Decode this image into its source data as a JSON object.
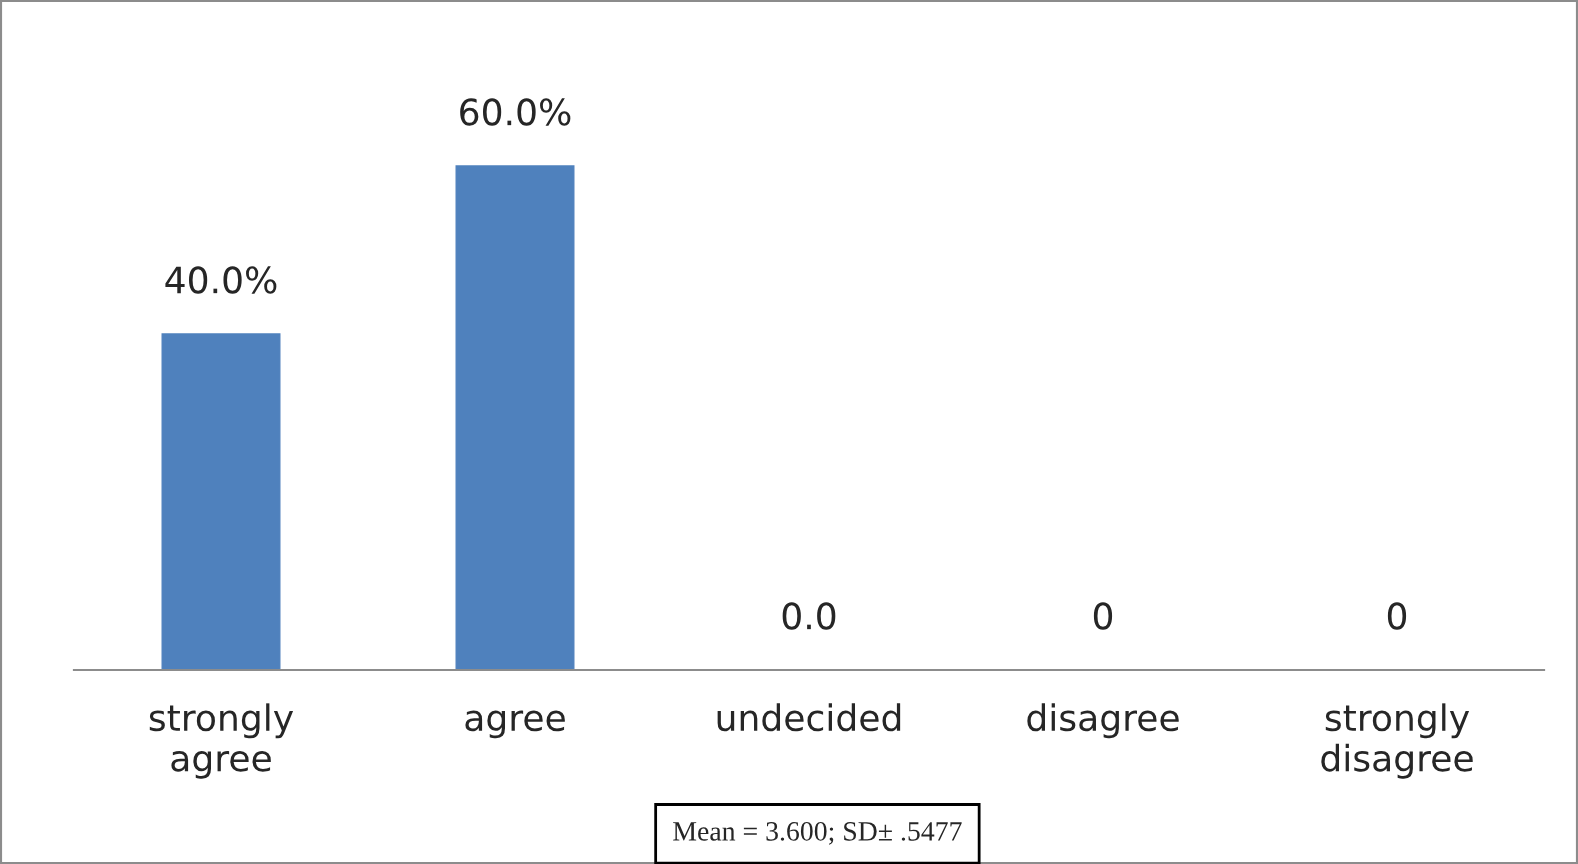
{
  "chart_data": {
    "type": "bar",
    "categories": [
      "strongly\nagree",
      "agree",
      "undecided",
      "disagree",
      "strongly\ndisagree"
    ],
    "values": [
      40,
      60,
      0,
      0,
      0
    ],
    "value_labels": [
      "40.0%",
      "60.0%",
      "0.0",
      "0",
      "0"
    ],
    "color": "#4f81bd",
    "grid": false,
    "legend": false,
    "annotations": [
      "Mean = 3.600; SD± .5477"
    ]
  }
}
